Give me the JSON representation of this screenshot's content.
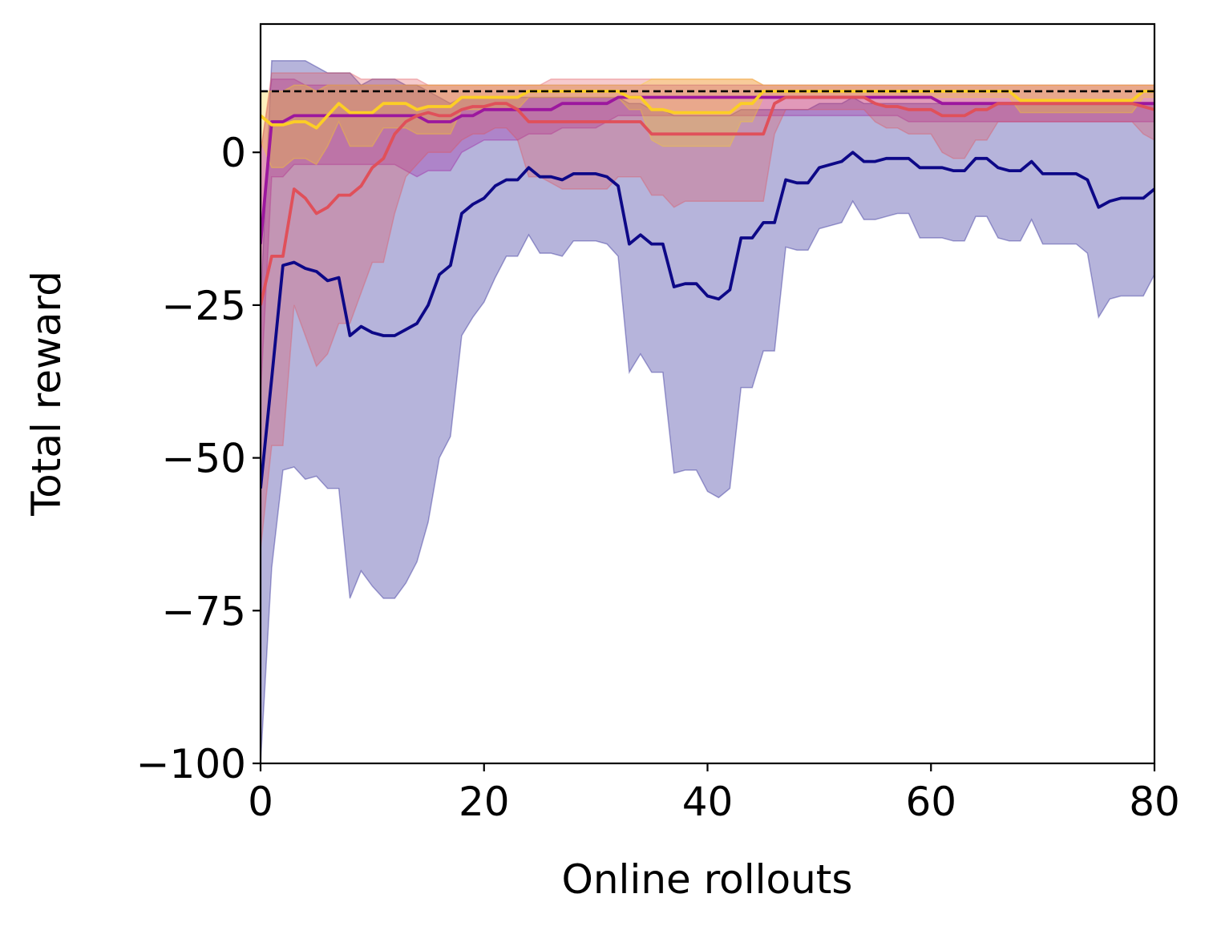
{
  "chart_data": {
    "type": "line",
    "xlabel": "Online rollouts",
    "ylabel": "Total reward",
    "xlim": [
      0,
      80
    ],
    "ylim": [
      -100,
      21
    ],
    "xticks": [
      0,
      20,
      40,
      60,
      80
    ],
    "yticks": [
      -100,
      -75,
      -50,
      -25,
      0
    ],
    "xtick_labels": [
      "0",
      "20",
      "40",
      "60",
      "80"
    ],
    "ytick_labels": [
      "−100",
      "−75",
      "−50",
      "−25",
      "0"
    ],
    "grid": false,
    "reference_line": {
      "y": 10,
      "style": "dashed",
      "color": "#000000"
    },
    "series": [
      {
        "color": "#0d0887",
        "fill_opacity": 0.3,
        "x": [
          0,
          1,
          2,
          3,
          4,
          5,
          6,
          7,
          8,
          9,
          10,
          11,
          12,
          13,
          14,
          15,
          16,
          17,
          18,
          19,
          20,
          21,
          22,
          23,
          24,
          25,
          26,
          27,
          28,
          29,
          30,
          31,
          32,
          33,
          34,
          35,
          36,
          37,
          38,
          39,
          40,
          41,
          42,
          43,
          44,
          45,
          46,
          47,
          48,
          49,
          50,
          51,
          52,
          53,
          54,
          55,
          56,
          57,
          58,
          59,
          60,
          61,
          62,
          63,
          64,
          65,
          66,
          67,
          68,
          69,
          70,
          71,
          72,
          73,
          74,
          75,
          76,
          77,
          78,
          79,
          80
        ],
        "mean": [
          -55,
          -37,
          -18.5,
          -18,
          -19,
          -19.5,
          -21,
          -20.5,
          -30,
          -28.5,
          -29.5,
          -30,
          -30,
          -29,
          -28,
          -25,
          -20,
          -18.5,
          -10,
          -8.5,
          -7.5,
          -5.5,
          -4.5,
          -4.5,
          -2.5,
          -4,
          -4,
          -4.5,
          -3.5,
          -3.5,
          -3.5,
          -4,
          -5.5,
          -15,
          -13.5,
          -15,
          -15,
          -22,
          -21.5,
          -21.5,
          -23.5,
          -24,
          -22.5,
          -14,
          -14,
          -11.5,
          -11.5,
          -4.5,
          -5,
          -5,
          -2.5,
          -2,
          -1.5,
          0,
          -1.5,
          -1.5,
          -1,
          -1,
          -1,
          -2.5,
          -2.5,
          -2.5,
          -3,
          -3,
          -1,
          -1,
          -2.5,
          -3,
          -3,
          -1.5,
          -3.5,
          -3.5,
          -3.5,
          -3.5,
          -4.5,
          -9,
          -8,
          -7.5,
          -7.5,
          -7.5,
          -6
        ],
        "upper": [
          -25,
          15,
          15,
          15,
          15,
          14,
          13,
          13,
          13,
          11,
          12,
          12,
          12,
          11,
          11,
          10,
          9,
          8,
          9,
          9,
          9,
          9,
          9,
          9,
          9,
          9,
          9,
          9,
          9,
          9,
          9,
          9,
          9,
          8,
          8,
          7,
          7,
          6,
          6,
          6,
          6,
          6,
          6,
          7,
          7,
          7,
          7,
          7,
          7,
          7,
          8,
          8,
          8,
          9,
          8,
          8,
          8,
          8,
          8,
          8,
          8,
          8,
          8,
          8,
          8,
          8,
          8,
          8,
          8,
          8,
          8,
          8,
          8,
          8,
          8,
          8,
          8,
          8,
          8,
          8,
          8
        ],
        "lower": [
          -100,
          -68,
          -52,
          -51.5,
          -53.5,
          -53,
          -55,
          -55,
          -73,
          -68.5,
          -71,
          -73,
          -73,
          -70.5,
          -67,
          -60.5,
          -50,
          -46.5,
          -30,
          -27,
          -24.5,
          -20.5,
          -17,
          -17,
          -13.5,
          -16.5,
          -16.5,
          -17,
          -14.5,
          -14.5,
          -14.5,
          -15,
          -17,
          -36,
          -33,
          -36,
          -36,
          -52.5,
          -52,
          -52,
          -55.5,
          -56.5,
          -55,
          -38.5,
          -38.5,
          -32.5,
          -32.5,
          -15.5,
          -16,
          -16,
          -12.5,
          -12,
          -11.5,
          -8,
          -11,
          -11,
          -10.5,
          -10,
          -10,
          -14,
          -14,
          -14,
          -14.5,
          -14.5,
          -10.5,
          -10.5,
          -14,
          -14.5,
          -14.5,
          -11,
          -15,
          -15,
          -15,
          -15,
          -16.5,
          -27,
          -24,
          -23.5,
          -23.5,
          -23.5,
          -20
        ]
      },
      {
        "color": "#9c179e",
        "fill_opacity": 0.3,
        "x": [
          0,
          1,
          2,
          3,
          4,
          5,
          6,
          7,
          8,
          9,
          10,
          11,
          12,
          13,
          14,
          15,
          16,
          17,
          18,
          19,
          20,
          21,
          22,
          23,
          24,
          25,
          26,
          27,
          28,
          29,
          30,
          31,
          32,
          33,
          34,
          35,
          36,
          37,
          38,
          39,
          40,
          41,
          42,
          43,
          44,
          45,
          46,
          47,
          48,
          49,
          50,
          51,
          52,
          53,
          54,
          55,
          56,
          57,
          58,
          59,
          60,
          61,
          62,
          63,
          64,
          65,
          66,
          67,
          68,
          69,
          70,
          71,
          72,
          73,
          74,
          75,
          76,
          77,
          78,
          79,
          80
        ],
        "mean": [
          -15,
          5,
          5,
          6,
          6,
          6,
          6,
          6,
          6,
          6,
          6,
          6,
          6,
          6,
          6,
          5,
          5,
          5,
          6,
          6,
          7,
          7,
          7,
          7,
          7,
          7,
          7,
          8,
          8,
          8,
          8,
          8,
          9,
          9,
          9,
          9,
          9,
          9,
          9,
          9,
          9,
          9,
          9,
          9,
          9,
          9,
          9,
          9,
          9,
          9,
          9,
          9,
          9,
          9,
          9,
          9,
          9,
          9,
          9,
          9,
          9,
          8,
          8,
          8,
          8,
          8,
          8,
          8,
          8,
          8,
          8,
          8,
          8,
          8,
          8,
          8,
          8,
          8,
          8,
          8,
          8
        ],
        "upper": [
          0,
          12,
          12,
          12,
          11,
          11,
          11,
          11,
          11,
          11,
          11,
          11,
          11,
          11,
          11,
          11,
          11,
          11,
          11,
          11,
          11,
          11,
          11,
          11,
          11,
          11,
          11,
          11,
          11,
          11,
          11,
          11,
          11,
          11,
          11,
          11,
          11,
          11,
          11,
          11,
          11,
          11,
          11,
          11,
          11,
          11,
          11,
          11,
          11,
          11,
          11,
          11,
          11,
          11,
          11,
          11,
          11,
          11,
          11,
          11,
          11,
          11,
          11,
          11,
          11,
          11,
          11,
          11,
          11,
          11,
          11,
          11,
          11,
          11,
          11,
          11,
          11,
          11,
          11,
          11,
          11
        ],
        "lower": [
          -40,
          -4,
          -4,
          -2,
          -2,
          -2,
          -2,
          -2,
          -2,
          -2,
          -2,
          -2,
          -2,
          -3,
          -4,
          -3,
          -3,
          -3,
          0,
          1,
          2,
          2,
          2,
          2,
          3,
          3,
          3,
          4,
          4,
          4,
          4,
          5,
          6,
          6,
          6,
          6,
          6,
          6,
          6,
          6,
          6,
          6,
          6,
          6,
          6,
          6,
          6,
          6,
          6,
          6,
          6,
          6,
          6,
          6,
          6,
          6,
          6,
          6,
          5,
          5,
          5,
          5,
          5,
          5,
          5,
          5,
          5,
          5,
          5,
          5,
          5,
          5,
          5,
          5,
          5,
          5,
          5,
          5,
          5,
          5,
          5
        ]
      },
      {
        "color": "#e0505a",
        "fill_opacity": 0.3,
        "x": [
          0,
          1,
          2,
          3,
          4,
          5,
          6,
          7,
          8,
          9,
          10,
          11,
          12,
          13,
          14,
          15,
          16,
          17,
          18,
          19,
          20,
          21,
          22,
          23,
          24,
          25,
          26,
          27,
          28,
          29,
          30,
          31,
          32,
          33,
          34,
          35,
          36,
          37,
          38,
          39,
          40,
          41,
          42,
          43,
          44,
          45,
          46,
          47,
          48,
          49,
          50,
          51,
          52,
          53,
          54,
          55,
          56,
          57,
          58,
          59,
          60,
          61,
          62,
          63,
          64,
          65,
          66,
          67,
          68,
          69,
          70,
          71,
          72,
          73,
          74,
          75,
          76,
          77,
          78,
          79,
          80
        ],
        "mean": [
          -25,
          -17,
          -17,
          -6,
          -7.5,
          -10,
          -9,
          -7,
          -7,
          -5.5,
          -2.5,
          -1,
          3,
          5,
          6,
          6.5,
          6,
          6,
          7,
          7.5,
          7.5,
          8,
          8,
          7,
          5,
          5,
          5,
          5,
          5,
          5,
          5,
          5,
          5,
          5,
          5,
          3,
          3,
          3,
          3,
          3,
          3,
          3,
          3,
          3,
          3,
          3,
          8,
          9,
          9,
          9,
          9,
          9,
          9,
          9,
          9,
          8,
          7.5,
          7.5,
          7,
          7,
          7,
          6,
          6,
          6,
          7,
          7,
          8,
          8,
          8,
          8,
          8,
          8,
          8,
          8,
          8,
          8,
          8,
          8,
          8,
          7.5,
          7
        ],
        "upper": [
          0,
          13,
          13,
          13,
          13,
          13,
          13,
          13,
          13,
          12,
          12,
          12,
          12,
          12,
          12,
          11,
          11,
          11,
          11,
          11,
          11,
          11,
          11,
          11,
          11,
          11,
          12,
          12,
          12,
          12,
          12,
          12,
          12,
          12,
          12,
          12,
          12,
          12,
          12,
          12,
          12,
          12,
          12,
          12,
          12,
          11,
          11,
          11,
          11,
          11,
          11,
          11,
          11,
          11,
          11,
          11,
          11,
          11,
          11,
          11,
          11,
          11,
          11,
          11,
          11,
          11,
          11,
          11,
          11,
          11,
          11,
          11,
          11,
          11,
          11,
          11,
          11,
          11,
          11,
          11,
          11
        ],
        "lower": [
          -65,
          -48,
          -48,
          -25,
          -30,
          -35,
          -33,
          -28,
          -28,
          -23,
          -18,
          -18,
          -10,
          -4,
          -2,
          0,
          0,
          0,
          2,
          3,
          3,
          4,
          4,
          2,
          -4,
          -4,
          -5,
          -6,
          -6,
          -6,
          -6,
          -6,
          -4,
          -4,
          -4,
          -7,
          -7,
          -9,
          -8,
          -8,
          -8,
          -8,
          -8,
          -8,
          -8,
          -8,
          3,
          7,
          7,
          7,
          7,
          7,
          7,
          7,
          7,
          5,
          4,
          4,
          3,
          3,
          3,
          0,
          -1,
          -1,
          2,
          2,
          5,
          5,
          5,
          5,
          5,
          5,
          5,
          5,
          5,
          5,
          5,
          5,
          5,
          3,
          2
        ]
      },
      {
        "color": "#fcce25",
        "fill_opacity": 0.3,
        "x": [
          0,
          1,
          2,
          3,
          4,
          5,
          6,
          7,
          8,
          9,
          10,
          11,
          12,
          13,
          14,
          15,
          16,
          17,
          18,
          19,
          20,
          21,
          22,
          23,
          24,
          25,
          26,
          27,
          28,
          29,
          30,
          31,
          32,
          33,
          34,
          35,
          36,
          37,
          38,
          39,
          40,
          41,
          42,
          43,
          44,
          45,
          46,
          47,
          48,
          49,
          50,
          51,
          52,
          53,
          54,
          55,
          56,
          57,
          58,
          59,
          60,
          61,
          62,
          63,
          64,
          65,
          66,
          67,
          68,
          69,
          70,
          71,
          72,
          73,
          74,
          75,
          76,
          77,
          78,
          79,
          80
        ],
        "mean": [
          6,
          4.5,
          4.5,
          5,
          5,
          4,
          6,
          8,
          6.5,
          6.5,
          6.5,
          8,
          8,
          8,
          7,
          7.5,
          7.5,
          7.5,
          9,
          9,
          9,
          9,
          9,
          9,
          10,
          10,
          10,
          10,
          10,
          10,
          10,
          10,
          10,
          9,
          9,
          7,
          7,
          6.5,
          6.5,
          6.5,
          6.5,
          6.5,
          6.5,
          8,
          8,
          10,
          10,
          10,
          10,
          10,
          10,
          10,
          10,
          10,
          10,
          10,
          10,
          10,
          10,
          10,
          10,
          10,
          10,
          10,
          10,
          10,
          10,
          10,
          8.5,
          8.5,
          8.5,
          8.5,
          8.5,
          8.5,
          8.5,
          8.5,
          8.5,
          8.5,
          8.5,
          10,
          10
        ],
        "upper": [
          10,
          10,
          10,
          11,
          11,
          10,
          11,
          11,
          11,
          11,
          11,
          11,
          11,
          11,
          11,
          11,
          11,
          11,
          11,
          11,
          11,
          11,
          11,
          11,
          11,
          11,
          11,
          11,
          11,
          11,
          11,
          11,
          11,
          11,
          11,
          12,
          12,
          12,
          12,
          12,
          12,
          12,
          12,
          12,
          12,
          11,
          11,
          11,
          11,
          11,
          11,
          11,
          11,
          11,
          11,
          11,
          11,
          11,
          11,
          11,
          11,
          11,
          11,
          11,
          11,
          11,
          11,
          11,
          11,
          11,
          11,
          11,
          11,
          11,
          11,
          11,
          11,
          11,
          11,
          11,
          11
        ],
        "lower": [
          2,
          -2.5,
          -2.5,
          -1,
          -1,
          -2,
          1,
          5,
          1,
          1,
          1,
          4,
          4,
          4,
          3,
          3,
          3,
          3,
          7,
          7,
          7,
          7,
          7,
          7,
          9,
          9,
          9,
          9,
          9,
          9,
          9,
          9,
          9,
          7,
          7,
          2,
          1,
          1,
          1,
          1,
          1,
          1,
          1,
          5,
          5,
          9,
          9,
          9,
          9,
          9,
          9,
          9,
          9,
          9,
          9,
          9,
          9,
          9,
          9,
          9,
          9,
          9,
          9,
          9,
          9,
          9,
          9,
          9,
          6.5,
          6.5,
          6.5,
          6.5,
          6.5,
          6.5,
          6.5,
          6.5,
          6.5,
          6.5,
          6.5,
          9,
          9
        ]
      }
    ]
  }
}
